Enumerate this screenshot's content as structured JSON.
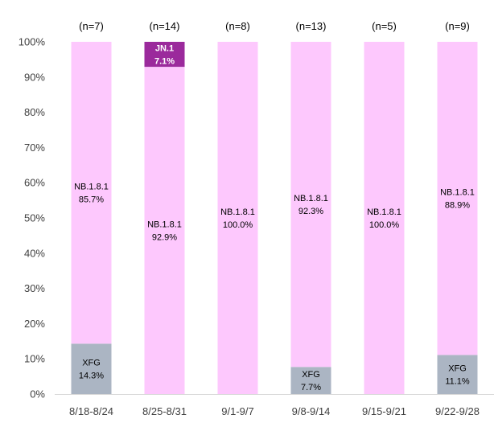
{
  "chart_data": {
    "type": "bar",
    "stacked": true,
    "title": "",
    "xlabel": "",
    "ylabel": "",
    "ylim": [
      0,
      100
    ],
    "yticks": [
      "0%",
      "10%",
      "20%",
      "30%",
      "40%",
      "50%",
      "60%",
      "70%",
      "80%",
      "90%",
      "100%"
    ],
    "categories": [
      "8/18-8/24",
      "8/25-8/31",
      "9/1-9/7",
      "9/8-9/14",
      "9/15-9/21",
      "9/22-9/28"
    ],
    "sample_sizes": [
      "(n=7)",
      "(n=14)",
      "(n=8)",
      "(n=13)",
      "(n=5)",
      "(n=9)"
    ],
    "series": [
      {
        "name": "XFG",
        "color": "#abb5c3",
        "values": [
          14.3,
          0,
          0,
          7.7,
          0,
          11.1
        ],
        "labels": [
          "14.3%",
          "",
          "",
          "7.7%",
          "",
          "11.1%"
        ]
      },
      {
        "name": "NB.1.8.1",
        "color": "#fdc8fd",
        "values": [
          85.7,
          92.9,
          100.0,
          92.3,
          100.0,
          88.9
        ],
        "labels": [
          "85.7%",
          "92.9%",
          "100.0%",
          "92.3%",
          "100.0%",
          "88.9%"
        ]
      },
      {
        "name": "JN.1",
        "color": "#9b2a9c",
        "values": [
          0,
          7.1,
          0,
          0,
          0,
          0
        ],
        "labels": [
          "",
          "7.1%",
          "",
          "",
          "",
          ""
        ]
      }
    ]
  }
}
